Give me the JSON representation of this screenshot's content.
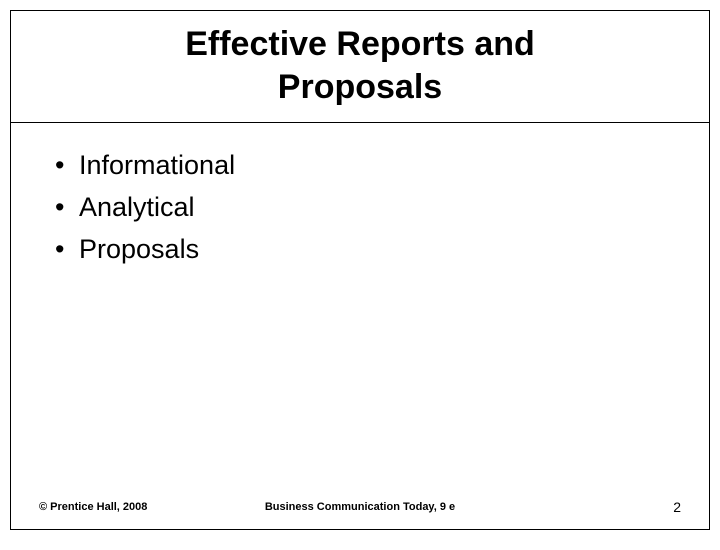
{
  "slide": {
    "title_line1": "Effective Reports and",
    "title_line2": "Proposals",
    "bullets": {
      "item1": "Informational",
      "item2": "Analytical",
      "item3": "Proposals"
    },
    "footer": {
      "copyright": "© Prentice Hall, 2008",
      "book_title": "Business Communication Today, 9 e",
      "page_number": "2"
    },
    "colors": {
      "background": "#ffffff",
      "text": "#000000",
      "border": "#000000"
    },
    "typography": {
      "title_fontsize": 34,
      "title_weight": "bold",
      "bullet_fontsize": 27,
      "footer_fontsize": 11,
      "pagenum_fontsize": 14,
      "font_family": "Verdana"
    }
  }
}
